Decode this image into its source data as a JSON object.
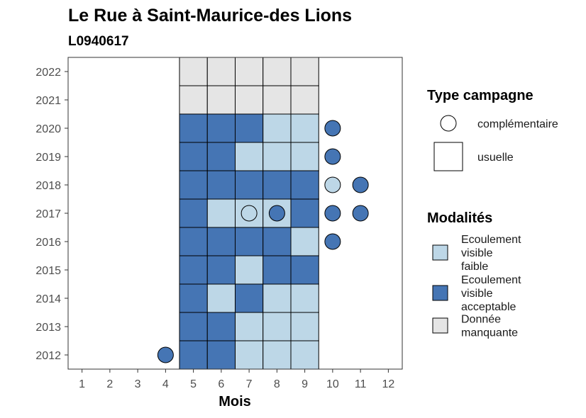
{
  "chart_data": {
    "type": "heatmap",
    "title": "Le Rue à Saint-Maurice-des Lions",
    "subtitle": "L0940617",
    "xlabel": "Mois",
    "ylabel": "",
    "x_ticks": [
      1,
      2,
      3,
      4,
      5,
      6,
      7,
      8,
      9,
      10,
      11,
      12
    ],
    "y_ticks": [
      2012,
      2013,
      2014,
      2015,
      2016,
      2017,
      2018,
      2019,
      2020,
      2021,
      2022
    ],
    "xlim": [
      0.5,
      12.5
    ],
    "ylim": [
      2011.5,
      2022.5
    ],
    "grid": false,
    "colors": {
      "Ecoulement visible faible": "#bdd7e7",
      "Ecoulement visible acceptable": "#4575b4",
      "Donnée manquante": "#e5e5e5"
    },
    "usuelle": [
      {
        "year": 2022,
        "months": [
          5,
          6,
          7,
          8,
          9
        ],
        "values": [
          "Donnée manquante",
          "Donnée manquante",
          "Donnée manquante",
          "Donnée manquante",
          "Donnée manquante"
        ]
      },
      {
        "year": 2021,
        "months": [
          5,
          6,
          7,
          8,
          9
        ],
        "values": [
          "Donnée manquante",
          "Donnée manquante",
          "Donnée manquante",
          "Donnée manquante",
          "Donnée manquante"
        ]
      },
      {
        "year": 2020,
        "months": [
          5,
          6,
          7,
          8,
          9
        ],
        "values": [
          "Ecoulement visible acceptable",
          "Ecoulement visible acceptable",
          "Ecoulement visible acceptable",
          "Ecoulement visible faible",
          "Ecoulement visible faible"
        ]
      },
      {
        "year": 2019,
        "months": [
          5,
          6,
          7,
          8,
          9
        ],
        "values": [
          "Ecoulement visible acceptable",
          "Ecoulement visible acceptable",
          "Ecoulement visible faible",
          "Ecoulement visible faible",
          "Ecoulement visible faible"
        ]
      },
      {
        "year": 2018,
        "months": [
          5,
          6,
          7,
          8,
          9
        ],
        "values": [
          "Ecoulement visible acceptable",
          "Ecoulement visible acceptable",
          "Ecoulement visible acceptable",
          "Ecoulement visible acceptable",
          "Ecoulement visible acceptable"
        ]
      },
      {
        "year": 2017,
        "months": [
          5,
          6,
          7,
          8,
          9
        ],
        "values": [
          "Ecoulement visible acceptable",
          "Ecoulement visible faible",
          "Ecoulement visible faible",
          "Ecoulement visible faible",
          "Ecoulement visible acceptable"
        ]
      },
      {
        "year": 2016,
        "months": [
          5,
          6,
          7,
          8,
          9
        ],
        "values": [
          "Ecoulement visible acceptable",
          "Ecoulement visible acceptable",
          "Ecoulement visible acceptable",
          "Ecoulement visible acceptable",
          "Ecoulement visible faible"
        ]
      },
      {
        "year": 2015,
        "months": [
          5,
          6,
          7,
          8,
          9
        ],
        "values": [
          "Ecoulement visible acceptable",
          "Ecoulement visible acceptable",
          "Ecoulement visible faible",
          "Ecoulement visible acceptable",
          "Ecoulement visible acceptable"
        ]
      },
      {
        "year": 2014,
        "months": [
          5,
          6,
          7,
          8,
          9
        ],
        "values": [
          "Ecoulement visible acceptable",
          "Ecoulement visible faible",
          "Ecoulement visible acceptable",
          "Ecoulement visible faible",
          "Ecoulement visible faible"
        ]
      },
      {
        "year": 2013,
        "months": [
          5,
          6,
          7,
          8,
          9
        ],
        "values": [
          "Ecoulement visible acceptable",
          "Ecoulement visible acceptable",
          "Ecoulement visible faible",
          "Ecoulement visible faible",
          "Ecoulement visible faible"
        ]
      },
      {
        "year": 2012,
        "months": [
          5,
          6,
          7,
          8,
          9
        ],
        "values": [
          "Ecoulement visible acceptable",
          "Ecoulement visible acceptable",
          "Ecoulement visible faible",
          "Ecoulement visible faible",
          "Ecoulement visible faible"
        ]
      }
    ],
    "complementaire": [
      {
        "year": 2012,
        "month": 4,
        "value": "Ecoulement visible acceptable"
      },
      {
        "year": 2016,
        "month": 10,
        "value": "Ecoulement visible acceptable"
      },
      {
        "year": 2017,
        "month": 7,
        "value": "Ecoulement visible faible"
      },
      {
        "year": 2017,
        "month": 8,
        "value": "Ecoulement visible acceptable"
      },
      {
        "year": 2017,
        "month": 10,
        "value": "Ecoulement visible acceptable"
      },
      {
        "year": 2017,
        "month": 11,
        "value": "Ecoulement visible acceptable"
      },
      {
        "year": 2018,
        "month": 10,
        "value": "Ecoulement visible faible"
      },
      {
        "year": 2018,
        "month": 11,
        "value": "Ecoulement visible acceptable"
      },
      {
        "year": 2019,
        "month": 10,
        "value": "Ecoulement visible acceptable"
      },
      {
        "year": 2020,
        "month": 10,
        "value": "Ecoulement visible acceptable"
      }
    ],
    "legend": {
      "placement": "right",
      "type_title": "Type campagne",
      "type_items": [
        "complémentaire",
        "usuelle"
      ],
      "modalites_title": "Modalités",
      "modalites_items": [
        {
          "label": "Ecoulement visible faible",
          "lines": [
            "Ecoulement",
            "visible",
            "faible"
          ]
        },
        {
          "label": "Ecoulement visible acceptable",
          "lines": [
            "Ecoulement",
            "visible",
            "acceptable"
          ]
        },
        {
          "label": "Donnée manquante",
          "lines": [
            "Donnée",
            "manquante"
          ]
        }
      ]
    }
  }
}
